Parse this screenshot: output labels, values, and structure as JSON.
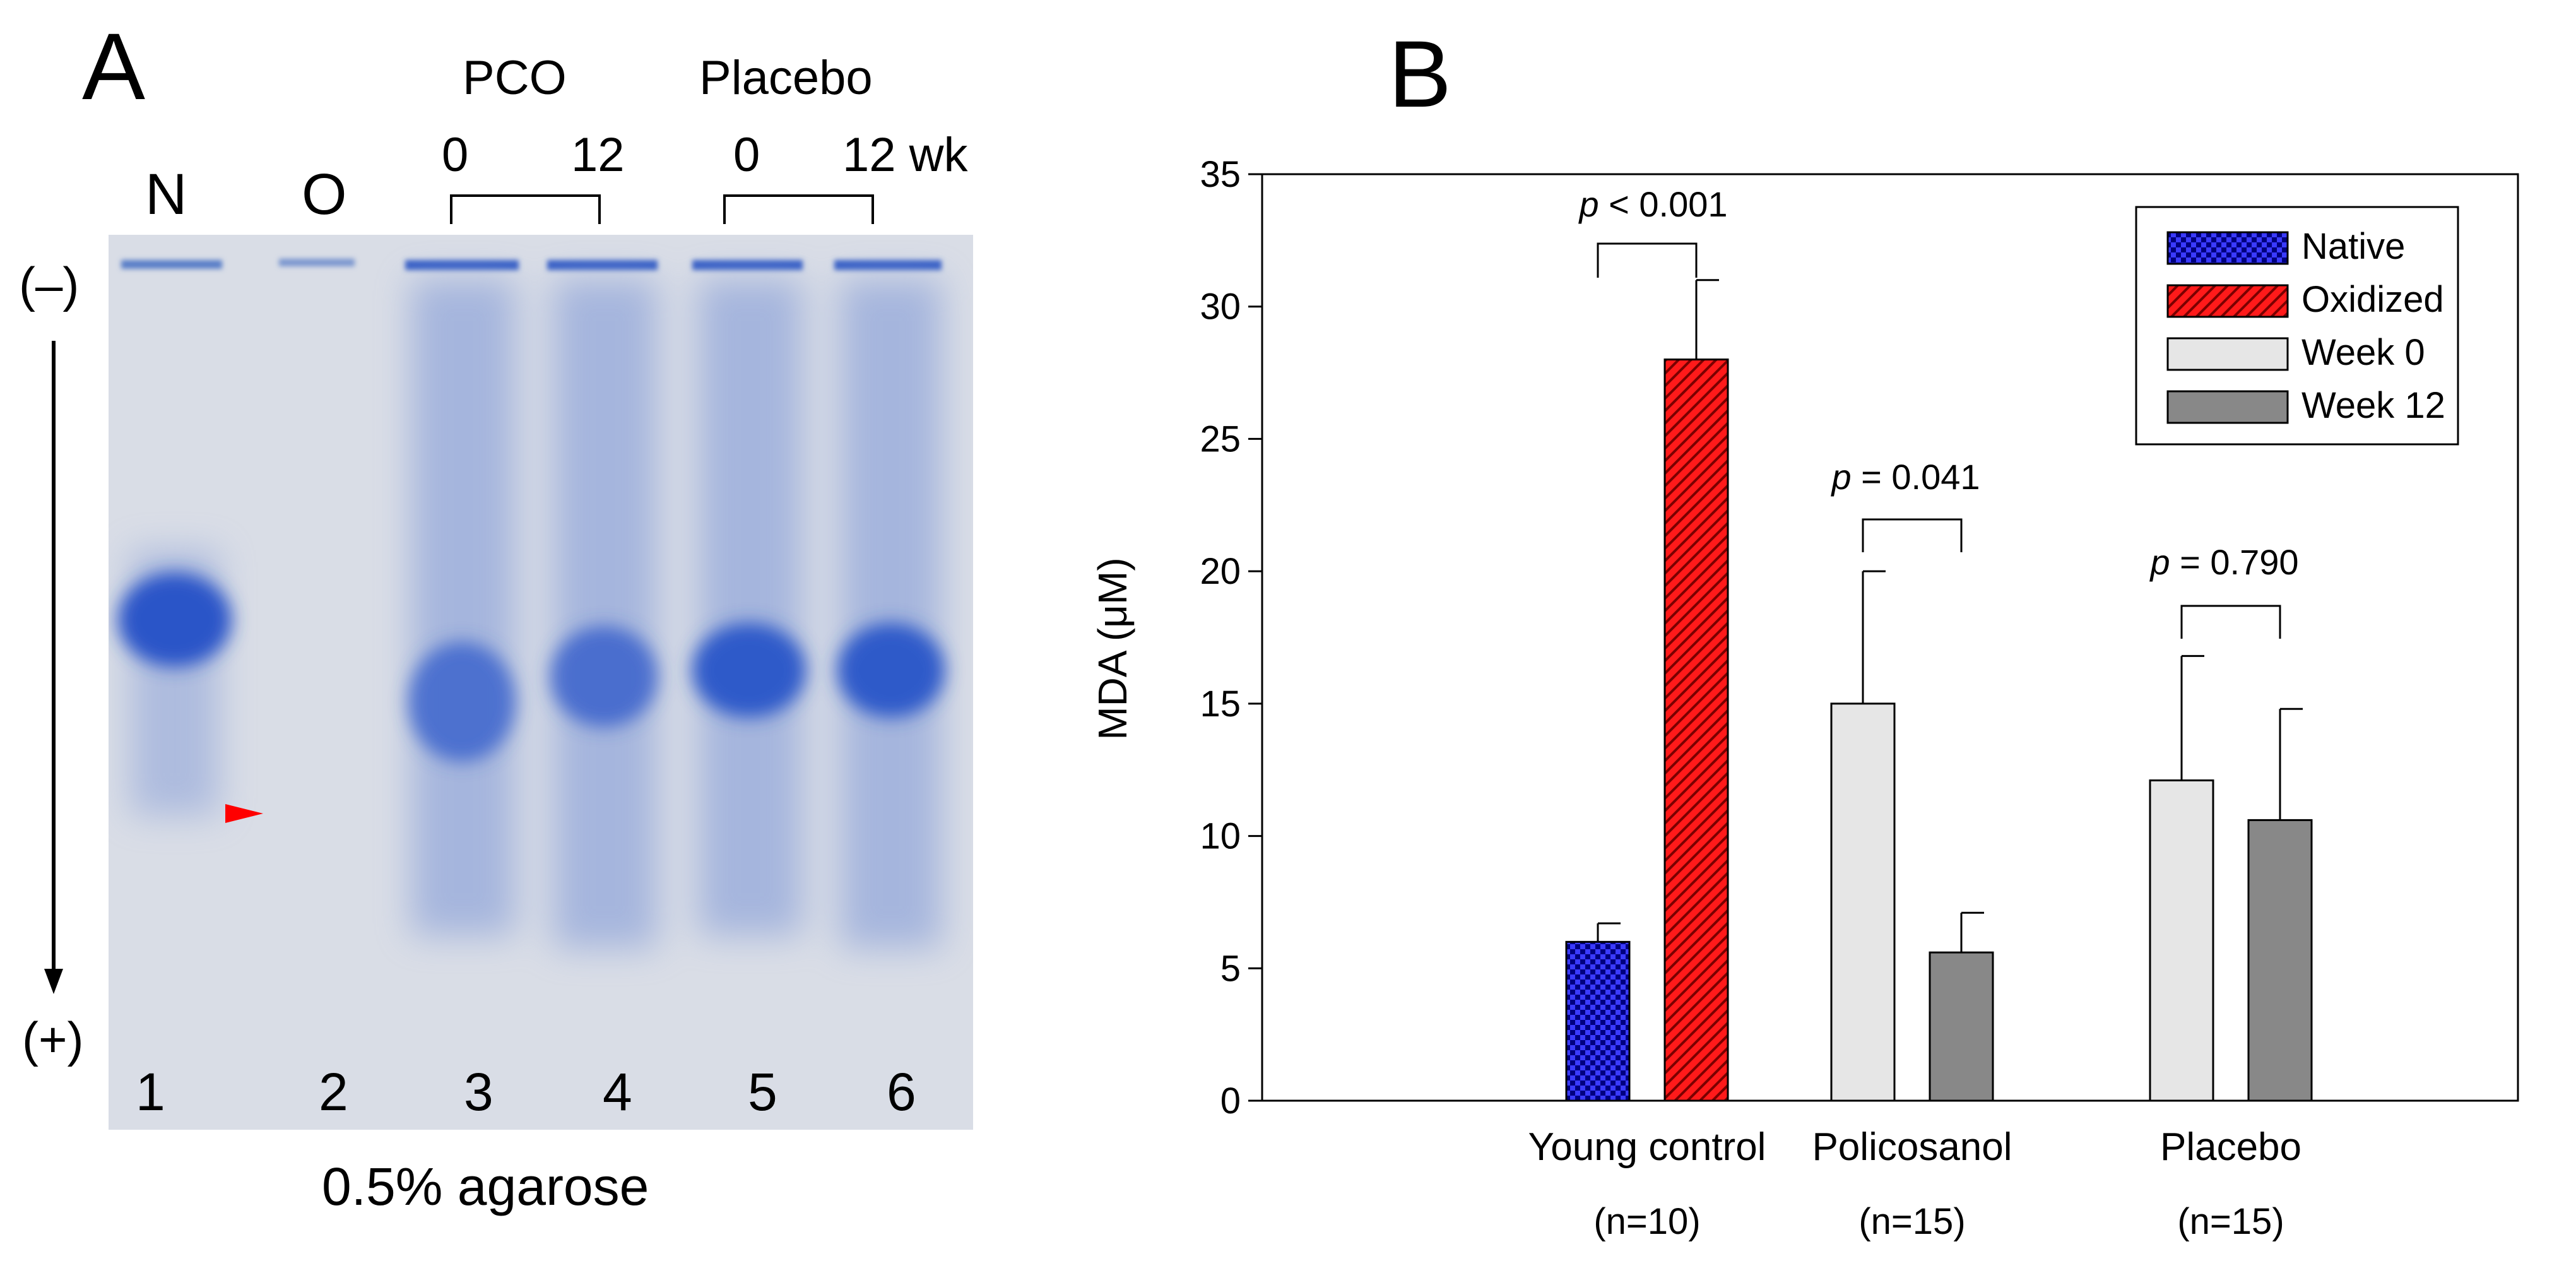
{
  "panel_a": {
    "letter": "A",
    "groups": {
      "pco": "PCO",
      "placebo": "Placebo"
    },
    "time_labels": [
      "0",
      "12",
      "0",
      "12 wk"
    ],
    "top_lanes": [
      "N",
      "O"
    ],
    "polarity_neg": "(–)",
    "polarity_pos": "(+)",
    "lane_numbers": [
      "1",
      "2",
      "3",
      "4",
      "5",
      "6"
    ],
    "caption": "0.5% agarose",
    "colors": {
      "gel_bg": "#d9dde8",
      "band": "#2a55c8",
      "arrowhead": "#ff0000"
    }
  },
  "panel_b": {
    "letter": "B",
    "p_labels": [
      {
        "italic": "p",
        "rest": " < 0.001"
      },
      {
        "italic": "p",
        "rest": " = 0.041"
      },
      {
        "italic": "p",
        "rest": " = 0.790"
      }
    ]
  },
  "chart_data": {
    "type": "bar",
    "ylabel": "MDA (μM)",
    "ylim": [
      0,
      35
    ],
    "yticks": [
      "0",
      "5",
      "10",
      "15",
      "20",
      "25",
      "30",
      "35"
    ],
    "groups": [
      {
        "label": "Young control",
        "n": "(n=10)"
      },
      {
        "label": "Policosanol",
        "n": "(n=15)"
      },
      {
        "label": "Placebo",
        "n": "(n=15)"
      }
    ],
    "legend": {
      "placement": "top-right",
      "entries": [
        {
          "name": "Native",
          "color": "#0000cc",
          "pattern": "checker"
        },
        {
          "name": "Oxidized",
          "color": "#ff1a1a",
          "pattern": "hatch"
        },
        {
          "name": "Week 0",
          "color": "#e6e6e6",
          "pattern": "solid"
        },
        {
          "name": "Week 12",
          "color": "#888888",
          "pattern": "solid"
        }
      ]
    },
    "bars": [
      {
        "group": 0,
        "series": "Native",
        "value": 6.0,
        "error": 0.7
      },
      {
        "group": 0,
        "series": "Oxidized",
        "value": 28.0,
        "error": 3.0
      },
      {
        "group": 1,
        "series": "Week 0",
        "value": 15.0,
        "error": 5.0
      },
      {
        "group": 1,
        "series": "Week 12",
        "value": 5.6,
        "error": 1.5
      },
      {
        "group": 2,
        "series": "Week 0",
        "value": 12.1,
        "error": 4.7
      },
      {
        "group": 2,
        "series": "Week 12",
        "value": 10.6,
        "error": 4.2
      }
    ],
    "grid": false
  }
}
